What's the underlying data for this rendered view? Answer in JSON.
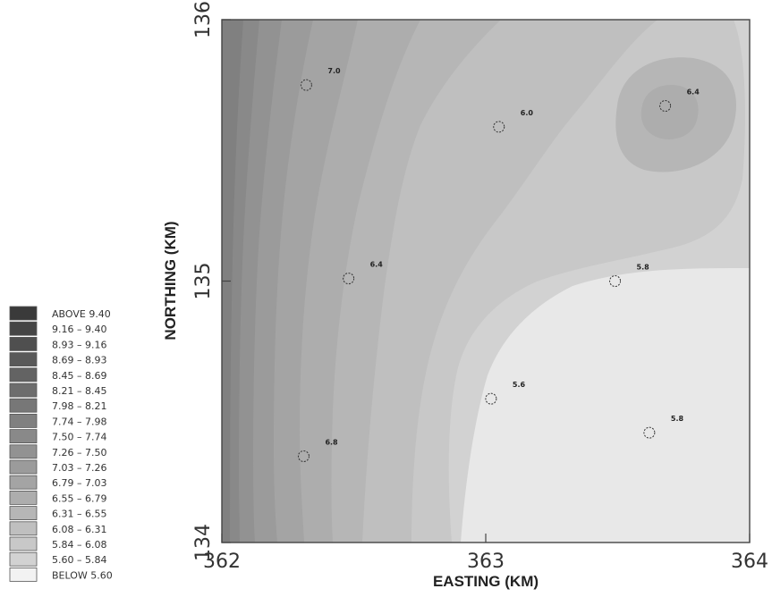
{
  "chart_data": {
    "type": "heatmap",
    "title": "",
    "xlabel": "EASTING (KM)",
    "ylabel": "NORTHING (KM)",
    "xlim": [
      362,
      364
    ],
    "ylim": [
      134,
      136
    ],
    "x_ticks": [
      "362",
      "363",
      "364"
    ],
    "y_ticks": [
      "134",
      "135",
      "136"
    ],
    "legend_position": "left",
    "legend": [
      {
        "label": "ABOVE   9.40",
        "color": "#3a3a3a"
      },
      {
        "label": "9.16  –  9.40",
        "color": "#454545"
      },
      {
        "label": "8.93  –  9.16",
        "color": "#4f4f4f"
      },
      {
        "label": "8.69  –  8.93",
        "color": "#595959"
      },
      {
        "label": "8.45  –  8.69",
        "color": "#636363"
      },
      {
        "label": "8.21  –  8.45",
        "color": "#6d6d6d"
      },
      {
        "label": "7.98  –  8.21",
        "color": "#777777"
      },
      {
        "label": "7.74  –  7.98",
        "color": "#808080"
      },
      {
        "label": "7.50  –  7.74",
        "color": "#898989"
      },
      {
        "label": "7.26  –  7.50",
        "color": "#929292"
      },
      {
        "label": "7.03  –  7.26",
        "color": "#9b9b9b"
      },
      {
        "label": "6.79  –  7.03",
        "color": "#a4a4a4"
      },
      {
        "label": "6.55  –  6.79",
        "color": "#adadad"
      },
      {
        "label": "6.31  –  6.55",
        "color": "#b6b6b6"
      },
      {
        "label": "6.08  –  6.31",
        "color": "#bfbfbf"
      },
      {
        "label": "5.84  –  6.08",
        "color": "#c8c8c8"
      },
      {
        "label": "5.60  –  5.84",
        "color": "#d2d2d2"
      },
      {
        "label": "BELOW   5.60",
        "color": "#f2f2f2"
      }
    ],
    "stations": [
      {
        "x": 362.32,
        "y": 135.75,
        "label": "7.0"
      },
      {
        "x": 363.68,
        "y": 135.67,
        "label": "6.4"
      },
      {
        "x": 363.05,
        "y": 135.59,
        "label": "6.0"
      },
      {
        "x": 362.48,
        "y": 135.01,
        "label": "6.4"
      },
      {
        "x": 363.49,
        "y": 135.0,
        "label": "5.8"
      },
      {
        "x": 363.02,
        "y": 134.55,
        "label": "5.6"
      },
      {
        "x": 363.62,
        "y": 134.42,
        "label": "5.8"
      },
      {
        "x": 362.31,
        "y": 134.33,
        "label": "6.8"
      }
    ]
  }
}
